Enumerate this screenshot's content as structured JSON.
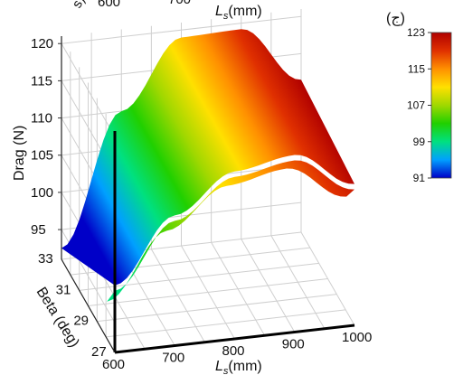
{
  "chart_data": {
    "type": "surface",
    "panel_label": "(ج)",
    "top_partial": {
      "x_ticks": [
        "600",
        "700"
      ],
      "xlabel_main": "L",
      "xlabel_sub": "s",
      "xlabel_unit": "(mm)",
      "ylabel_fragment": "s)"
    },
    "x_axis": {
      "label_main": "L",
      "label_sub": "s",
      "label_unit": "(mm)",
      "ticks": [
        "600",
        "700",
        "800",
        "900",
        "1000"
      ],
      "range": [
        600,
        1000
      ]
    },
    "y_axis": {
      "label": "Beta (deg)",
      "ticks": [
        "27",
        "29",
        "31",
        "33"
      ],
      "range": [
        27,
        33
      ]
    },
    "z_axis": {
      "label": "Drag (N)",
      "ticks": [
        "95",
        "100",
        "105",
        "110",
        "115",
        "120"
      ],
      "range": [
        91,
        121
      ]
    },
    "colorbar": {
      "ticks": [
        "123",
        "115",
        "107",
        "99",
        "91"
      ],
      "range": [
        91,
        123
      ],
      "colors": [
        "#0000c8",
        "#00a0ff",
        "#00e080",
        "#20d000",
        "#a0d800",
        "#ffe000",
        "#ff9000",
        "#e03000",
        "#b00000"
      ]
    },
    "surface_profile": {
      "x": [
        600,
        700,
        800,
        900,
        1000
      ],
      "drag_beta_33": [
        92.5,
        110.0,
        119.0,
        119.2,
        111.5
      ],
      "drag_beta_27": [
        100.0,
        108.5,
        113.5,
        114.8,
        110.0
      ]
    },
    "grid": true
  }
}
